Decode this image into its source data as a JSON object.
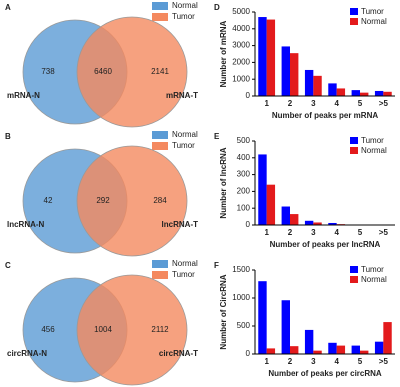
{
  "chart_data": [
    {
      "type": "venn",
      "label": "A",
      "intersection": 6460,
      "sets": [
        {
          "name": "Normal",
          "color": "#5b9bd5",
          "label": "mRNA-N",
          "only": 738
        },
        {
          "name": "Tumor",
          "color": "#f4895f",
          "label": "mRNA-T",
          "only": 2141
        }
      ]
    },
    {
      "type": "venn",
      "label": "B",
      "intersection": 292,
      "sets": [
        {
          "name": "Normal",
          "color": "#5b9bd5",
          "label": "lncRNA-N",
          "only": 42
        },
        {
          "name": "Tumor",
          "color": "#f4895f",
          "label": "lncRNA-T",
          "only": 284
        }
      ]
    },
    {
      "type": "venn",
      "label": "C",
      "intersection": 1004,
      "sets": [
        {
          "name": "Normal",
          "color": "#5b9bd5",
          "label": "circRNA-N",
          "only": 456
        },
        {
          "name": "Tumor",
          "color": "#f4895f",
          "label": "circRNA-T",
          "only": 2112
        }
      ]
    },
    {
      "type": "bar",
      "label": "D",
      "ylabel": "Number of mRNA",
      "xlabel": "Number of peaks per mRNA",
      "categories": [
        "1",
        "2",
        "3",
        "4",
        "5",
        ">5"
      ],
      "series": [
        {
          "name": "Tumor",
          "color": "#0000ff",
          "values": [
            4700,
            2950,
            1550,
            750,
            350,
            300
          ]
        },
        {
          "name": "Normal",
          "color": "#e31a1c",
          "values": [
            4550,
            2550,
            1200,
            450,
            200,
            250
          ]
        }
      ],
      "ylim": [
        0,
        5000
      ],
      "yticks": [
        0,
        1000,
        2000,
        3000,
        4000,
        5000
      ]
    },
    {
      "type": "bar",
      "label": "E",
      "ylabel": "Number of lncRNA",
      "xlabel": "Number of peaks per lncRNA",
      "categories": [
        "1",
        "2",
        "3",
        "4",
        "5",
        ">5"
      ],
      "series": [
        {
          "name": "Tumor",
          "color": "#0000ff",
          "values": [
            420,
            110,
            25,
            12,
            0,
            0
          ]
        },
        {
          "name": "Normal",
          "color": "#e31a1c",
          "values": [
            240,
            65,
            15,
            5,
            0,
            0
          ]
        }
      ],
      "ylim": [
        0,
        500
      ],
      "yticks": [
        0,
        100,
        200,
        300,
        400,
        500
      ]
    },
    {
      "type": "bar",
      "label": "F",
      "ylabel": "Number of CircRNA",
      "xlabel": "Number of peaks per circRNA",
      "categories": [
        "1",
        "2",
        "3",
        "4",
        "5",
        ">5"
      ],
      "series": [
        {
          "name": "Tumor",
          "color": "#0000ff",
          "values": [
            1300,
            960,
            430,
            200,
            150,
            220
          ]
        },
        {
          "name": "Normal",
          "color": "#e31a1c",
          "values": [
            100,
            140,
            60,
            150,
            60,
            570
          ]
        }
      ],
      "ylim": [
        0,
        1500
      ],
      "yticks": [
        0,
        500,
        1000,
        1500
      ]
    }
  ]
}
